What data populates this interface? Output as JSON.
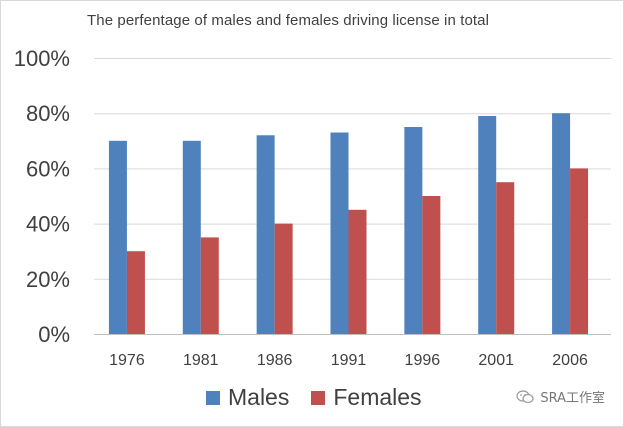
{
  "chart_data": {
    "type": "bar",
    "title": "The perfentage of males and females driving license in total",
    "xlabel": "",
    "ylabel": "",
    "categories": [
      "1976",
      "1981",
      "1986",
      "1991",
      "1996",
      "2001",
      "2006"
    ],
    "series": [
      {
        "name": "Males",
        "color": "#4f81bd",
        "values": [
          70,
          70,
          72,
          73,
          75,
          79,
          80
        ]
      },
      {
        "name": "Females",
        "color": "#c0504d",
        "values": [
          30,
          35,
          40,
          45,
          50,
          55,
          60
        ]
      }
    ],
    "ylim": [
      0,
      100
    ],
    "yticks": [
      0,
      20,
      40,
      60,
      80,
      100
    ],
    "ytick_labels": [
      "0%",
      "20%",
      "40%",
      "60%",
      "80%",
      "100%"
    ],
    "grid": true,
    "legend_position": "bottom"
  },
  "watermark": {
    "text": "SRA工作室",
    "icon": "wechat-icon"
  }
}
